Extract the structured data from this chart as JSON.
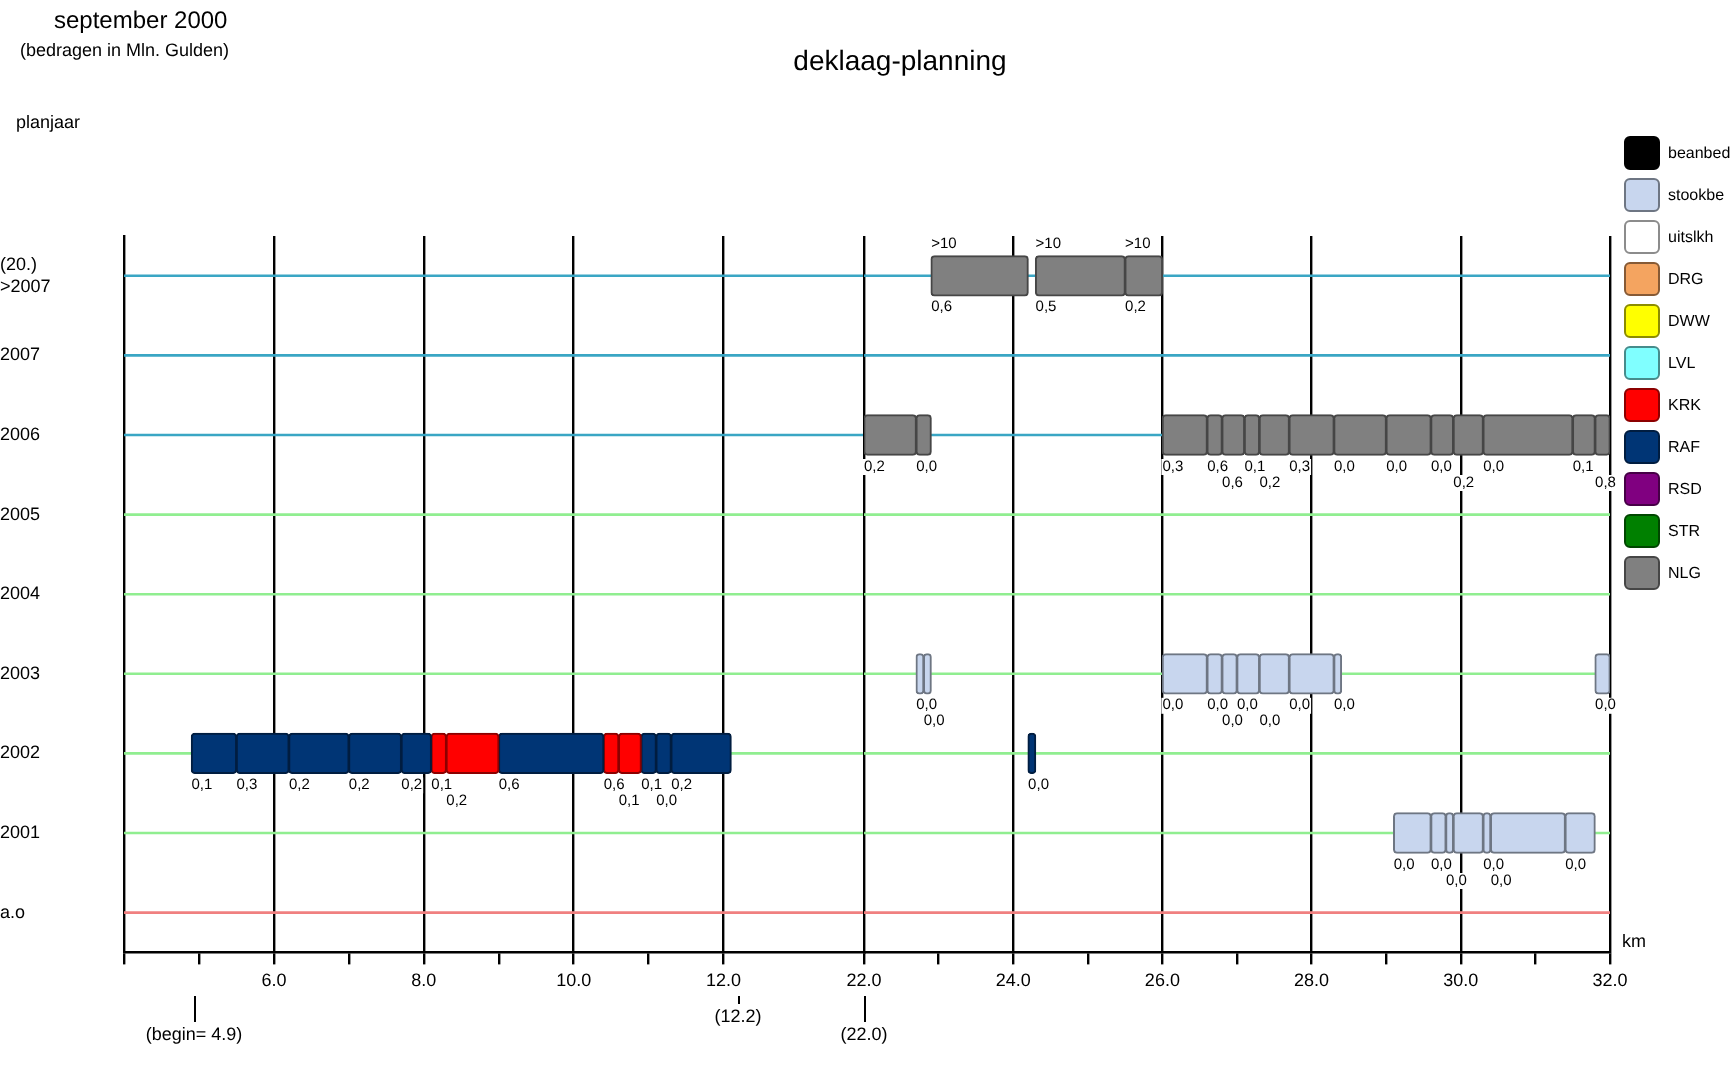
{
  "chart_data": [
    {
      "type": "bar",
      "orientation": "horizontal",
      "title": "deklaag-planning",
      "subtitle": "september 2000",
      "ylabel": "planjaar",
      "annotations": [
        "(bedragen in Mln. Gulden)",
        "(begin= 4.9)",
        "(12.2)",
        {
          "text": "0,1",
          "x": 4.9,
          "y": "2002"
        },
        {
          "text": "0,3",
          "x": 5.5,
          "y": "2002"
        },
        {
          "text": "0,2",
          "x": 6.2,
          "y": "2002"
        },
        {
          "text": "0,2",
          "x": 7.0,
          "y": "2002"
        },
        {
          "text": "0,2",
          "x": 7.7,
          "y": "2002"
        },
        {
          "text": "0,1",
          "x": 8.1,
          "y": "2002"
        },
        {
          "text": "0,2",
          "x": 8.3,
          "y": "2002"
        },
        {
          "text": "0,6",
          "x": 9.0,
          "y": "2002"
        },
        {
          "text": "0,6",
          "x": 10.4,
          "y": "2002"
        },
        {
          "text": "0,1",
          "x": 10.6,
          "y": "2002"
        },
        {
          "text": "0,1",
          "x": 10.9,
          "y": "2002"
        },
        {
          "text": "0,0",
          "x": 11.1,
          "y": "2002"
        },
        {
          "text": "0,2",
          "x": 11.3,
          "y": "2002"
        }
      ],
      "categories": [
        "(20.)\n>2007",
        "2007",
        "2006",
        "2005",
        "2004",
        "2003",
        "2002",
        "2001",
        "a.o"
      ],
      "xlim": [
        4,
        13.9
      ],
      "xticks": [
        {
          "value": 4,
          "label": null
        },
        {
          "value": 5,
          "label": null
        },
        {
          "value": 6,
          "label": "6.0"
        },
        {
          "value": 7,
          "label": null
        },
        {
          "value": 8,
          "label": "8.0"
        },
        {
          "value": 9,
          "label": null
        },
        {
          "value": 10,
          "label": "10.0"
        },
        {
          "value": 11,
          "label": null
        },
        {
          "value": 12,
          "label": "12.0"
        }
      ],
      "grid": "x",
      "series": [
        {
          "color": "#003575",
          "base": [
            null,
            null,
            null,
            null,
            null,
            null,
            4.9,
            null,
            null
          ],
          "values": [
            null,
            null,
            null,
            null,
            null,
            null,
            0.6,
            null,
            null
          ]
        },
        {
          "color": "#003575",
          "base": [
            null,
            null,
            null,
            null,
            null,
            null,
            5.5,
            null,
            null
          ],
          "values": [
            null,
            null,
            null,
            null,
            null,
            null,
            0.7,
            null,
            null
          ]
        },
        {
          "color": "#003575",
          "base": [
            null,
            null,
            null,
            null,
            null,
            null,
            6.2,
            null,
            null
          ],
          "values": [
            null,
            null,
            null,
            null,
            null,
            null,
            0.8,
            null,
            null
          ]
        },
        {
          "color": "#003575",
          "base": [
            null,
            null,
            null,
            null,
            null,
            null,
            7.0,
            null,
            null
          ],
          "values": [
            null,
            null,
            null,
            null,
            null,
            null,
            0.7,
            null,
            null
          ]
        },
        {
          "color": "#003575",
          "base": [
            null,
            null,
            null,
            null,
            null,
            null,
            7.7,
            null,
            null
          ],
          "values": [
            null,
            null,
            null,
            null,
            null,
            null,
            0.4,
            null,
            null
          ]
        },
        {
          "color": "#ff0000",
          "base": [
            null,
            null,
            null,
            null,
            null,
            null,
            8.1,
            null,
            null
          ],
          "values": [
            null,
            null,
            null,
            null,
            null,
            null,
            0.2,
            null,
            null
          ]
        },
        {
          "color": "#ff0000",
          "base": [
            null,
            null,
            null,
            null,
            null,
            null,
            8.3,
            null,
            null
          ],
          "values": [
            null,
            null,
            null,
            null,
            null,
            null,
            0.7,
            null,
            null
          ]
        },
        {
          "color": "#003575",
          "base": [
            null,
            null,
            null,
            null,
            null,
            null,
            9.0,
            null,
            null
          ],
          "values": [
            null,
            null,
            null,
            null,
            null,
            null,
            1.4,
            null,
            null
          ]
        },
        {
          "color": "#ff0000",
          "base": [
            null,
            null,
            null,
            null,
            null,
            null,
            10.4,
            null,
            null
          ],
          "values": [
            null,
            null,
            null,
            null,
            null,
            null,
            0.2,
            null,
            null
          ]
        },
        {
          "color": "#ff0000",
          "base": [
            null,
            null,
            null,
            null,
            null,
            null,
            10.6,
            null,
            null
          ],
          "values": [
            null,
            null,
            null,
            null,
            null,
            null,
            0.3,
            null,
            null
          ]
        },
        {
          "color": "#003575",
          "base": [
            null,
            null,
            null,
            null,
            null,
            null,
            10.9,
            null,
            null
          ],
          "values": [
            null,
            null,
            null,
            null,
            null,
            null,
            0.2,
            null,
            null
          ]
        },
        {
          "color": "#003575",
          "base": [
            null,
            null,
            null,
            null,
            null,
            null,
            11.1,
            null,
            null
          ],
          "values": [
            null,
            null,
            null,
            null,
            null,
            null,
            0.2,
            null,
            null
          ]
        },
        {
          "color": "#003575",
          "base": [
            null,
            null,
            null,
            null,
            null,
            null,
            11.3,
            null,
            null
          ],
          "values": [
            null,
            null,
            null,
            null,
            null,
            null,
            0.8,
            null,
            null
          ]
        }
      ],
      "ref_lines": [
        {
          "axis": "y",
          "value": "(20.)\n>2007",
          "color": "#3aa6c4"
        },
        {
          "axis": "y",
          "value": "2007",
          "color": "#3aa6c4"
        },
        {
          "axis": "y",
          "value": "2006",
          "color": "#3aa6c4"
        },
        {
          "axis": "y",
          "value": "2005",
          "color": "#90ee90"
        },
        {
          "axis": "y",
          "value": "2004",
          "color": "#90ee90"
        },
        {
          "axis": "y",
          "value": "2003",
          "color": "#90ee90"
        },
        {
          "axis": "y",
          "value": "2002",
          "color": "#90ee90"
        },
        {
          "axis": "y",
          "value": "2001",
          "color": "#90ee90"
        },
        {
          "axis": "y",
          "value": "a.o",
          "color": "#f08080"
        }
      ]
    },
    {
      "type": "bar",
      "orientation": "horizontal",
      "xlabel": "km",
      "annotations": [
        "(22.0)",
        {
          "text": "0,6",
          "x": 22.9,
          "y": "(20.)\n>2007"
        },
        {
          "text": ">10",
          "x": 22.9,
          "y": "(20.)\n>2007"
        },
        {
          "text": "0,5",
          "x": 24.3,
          "y": "(20.)\n>2007"
        },
        {
          "text": ">10",
          "x": 24.3,
          "y": "(20.)\n>2007"
        },
        {
          "text": "0,2",
          "x": 25.5,
          "y": "(20.)\n>2007"
        },
        {
          "text": ">10",
          "x": 25.5,
          "y": "(20.)\n>2007"
        },
        {
          "text": "0,2",
          "x": 22.0,
          "y": "2006"
        },
        {
          "text": "0,0",
          "x": 22.7,
          "y": "2006"
        },
        {
          "text": "0,3",
          "x": 26.0,
          "y": "2006"
        },
        {
          "text": "0,6",
          "x": 26.6,
          "y": "2006"
        },
        {
          "text": "0,6",
          "x": 26.8,
          "y": "2006"
        },
        {
          "text": "0,1",
          "x": 27.1,
          "y": "2006"
        },
        {
          "text": "0,2",
          "x": 27.3,
          "y": "2006"
        },
        {
          "text": "0,3",
          "x": 27.7,
          "y": "2006"
        },
        {
          "text": "0,0",
          "x": 28.3,
          "y": "2006"
        },
        {
          "text": "0,0",
          "x": 29.0,
          "y": "2006"
        },
        {
          "text": "0,0",
          "x": 29.6,
          "y": "2006"
        },
        {
          "text": "0,2",
          "x": 29.9,
          "y": "2006"
        },
        {
          "text": "0,0",
          "x": 30.3,
          "y": "2006"
        },
        {
          "text": "0,1",
          "x": 31.5,
          "y": "2006"
        },
        {
          "text": "0,8",
          "x": 31.8,
          "y": "2006"
        },
        {
          "text": "0,0",
          "x": 22.7,
          "y": "2003"
        },
        {
          "text": "0,0",
          "x": 22.8,
          "y": "2003"
        },
        {
          "text": "0,0",
          "x": 26.0,
          "y": "2003"
        },
        {
          "text": "0,0",
          "x": 26.6,
          "y": "2003"
        },
        {
          "text": "0,0",
          "x": 26.8,
          "y": "2003"
        },
        {
          "text": "0,0",
          "x": 27.0,
          "y": "2003"
        },
        {
          "text": "0,0",
          "x": 27.3,
          "y": "2003"
        },
        {
          "text": "0,0",
          "x": 27.7,
          "y": "2003"
        },
        {
          "text": "0,0",
          "x": 28.3,
          "y": "2003"
        },
        {
          "text": "0,0",
          "x": 31.8,
          "y": "2003"
        },
        {
          "text": "0,0",
          "x": 24.2,
          "y": "2002"
        },
        {
          "text": "0,0",
          "x": 29.1,
          "y": "2001"
        },
        {
          "text": "0,0",
          "x": 29.6,
          "y": "2001"
        },
        {
          "text": "0,0",
          "x": 29.8,
          "y": "2001"
        },
        {
          "text": "0,0",
          "x": 30.3,
          "y": "2001"
        },
        {
          "text": "0,0",
          "x": 30.4,
          "y": "2001"
        },
        {
          "text": "0,0",
          "x": 31.4,
          "y": "2001"
        }
      ],
      "categories": [
        "(20.)\n>2007",
        "2007",
        "2006",
        "2005",
        "2004",
        "2003",
        "2002",
        "2001",
        "a.o"
      ],
      "xlim": [
        22,
        32
      ],
      "xticks": [
        {
          "value": 22,
          "label": "22.0"
        },
        {
          "value": 23,
          "label": null
        },
        {
          "value": 24,
          "label": "24.0"
        },
        {
          "value": 25,
          "label": null
        },
        {
          "value": 26,
          "label": "26.0"
        },
        {
          "value": 27,
          "label": null
        },
        {
          "value": 28,
          "label": "28.0"
        },
        {
          "value": 29,
          "label": null
        },
        {
          "value": 30,
          "label": "30.0"
        },
        {
          "value": 31,
          "label": null
        },
        {
          "value": 32,
          "label": "32.0"
        }
      ],
      "grid": "x",
      "tick_labels": "x",
      "legend": "right",
      "series": [
        {
          "name": "beanbed",
          "color": "#000000",
          "base": [
            null,
            null,
            null,
            null,
            null,
            null,
            null,
            null,
            null
          ],
          "values": [
            null,
            null,
            null,
            null,
            null,
            null,
            null,
            null,
            null
          ]
        },
        {
          "name": "stookbe",
          "color": "#c8d6ee",
          "base": [
            null,
            null,
            null,
            null,
            null,
            22.7,
            null,
            29.1,
            null
          ],
          "values": [
            null,
            null,
            null,
            null,
            null,
            0.1,
            null,
            0.5,
            null
          ]
        },
        {
          "name": "uitslkh",
          "color": "#ffffff",
          "base": [
            null,
            null,
            null,
            null,
            null,
            null,
            null,
            null,
            null
          ],
          "values": [
            null,
            null,
            null,
            null,
            null,
            null,
            null,
            null,
            null
          ]
        },
        {
          "name": "DRG",
          "color": "#f4a460",
          "base": [
            null,
            null,
            null,
            null,
            null,
            null,
            null,
            null,
            null
          ],
          "values": [
            null,
            null,
            null,
            null,
            null,
            null,
            null,
            null,
            null
          ]
        },
        {
          "name": "DWW",
          "color": "#ffff00",
          "base": [
            null,
            null,
            null,
            null,
            null,
            null,
            null,
            null,
            null
          ],
          "values": [
            null,
            null,
            null,
            null,
            null,
            null,
            null,
            null,
            null
          ]
        },
        {
          "name": "LVL",
          "color": "#80ffff",
          "base": [
            null,
            null,
            null,
            null,
            null,
            null,
            null,
            null,
            null
          ],
          "values": [
            null,
            null,
            null,
            null,
            null,
            null,
            null,
            null,
            null
          ]
        },
        {
          "name": "KRK",
          "color": "#ff0000",
          "base": [
            null,
            null,
            null,
            null,
            null,
            null,
            null,
            null,
            null
          ],
          "values": [
            null,
            null,
            null,
            null,
            null,
            null,
            null,
            null,
            null
          ]
        },
        {
          "name": "RAF",
          "color": "#003575",
          "base": [
            null,
            null,
            null,
            null,
            null,
            null,
            24.2,
            null,
            null
          ],
          "values": [
            null,
            null,
            null,
            null,
            null,
            null,
            0.1,
            null,
            null
          ]
        },
        {
          "name": "RSD",
          "color": "#800080",
          "base": [
            null,
            null,
            null,
            null,
            null,
            null,
            null,
            null,
            null
          ],
          "values": [
            null,
            null,
            null,
            null,
            null,
            null,
            null,
            null,
            null
          ]
        },
        {
          "name": "STR",
          "color": "#008000",
          "base": [
            null,
            null,
            null,
            null,
            null,
            null,
            null,
            null,
            null
          ],
          "values": [
            null,
            null,
            null,
            null,
            null,
            null,
            null,
            null,
            null
          ]
        },
        {
          "name": "NLG",
          "color": "#808080",
          "base": [
            22.9,
            null,
            22.0,
            null,
            null,
            null,
            null,
            null,
            null
          ],
          "values": [
            1.3,
            null,
            0.7,
            null,
            null,
            null,
            null,
            null,
            null
          ]
        },
        {
          "color": "#808080",
          "base": [
            24.3,
            null,
            22.7,
            null,
            null,
            null,
            null,
            null,
            null
          ],
          "values": [
            1.2,
            null,
            0.2,
            null,
            null,
            null,
            null,
            null,
            null
          ]
        },
        {
          "color": "#808080",
          "base": [
            25.5,
            null,
            26.0,
            null,
            null,
            null,
            null,
            null,
            null
          ],
          "values": [
            0.5,
            null,
            0.6,
            null,
            null,
            null,
            null,
            null,
            null
          ]
        },
        {
          "color": "#808080",
          "base": [
            null,
            null,
            26.6,
            null,
            null,
            null,
            null,
            null,
            null
          ],
          "values": [
            null,
            null,
            0.2,
            null,
            null,
            null,
            null,
            null,
            null
          ]
        },
        {
          "color": "#808080",
          "base": [
            null,
            null,
            26.8,
            null,
            null,
            null,
            null,
            null,
            null
          ],
          "values": [
            null,
            null,
            0.3,
            null,
            null,
            null,
            null,
            null,
            null
          ]
        },
        {
          "color": "#808080",
          "base": [
            null,
            null,
            27.1,
            null,
            null,
            null,
            null,
            null,
            null
          ],
          "values": [
            null,
            null,
            0.2,
            null,
            null,
            null,
            null,
            null,
            null
          ]
        },
        {
          "color": "#808080",
          "base": [
            null,
            null,
            27.3,
            null,
            null,
            null,
            null,
            null,
            null
          ],
          "values": [
            null,
            null,
            0.4,
            null,
            null,
            null,
            null,
            null,
            null
          ]
        },
        {
          "color": "#808080",
          "base": [
            null,
            null,
            27.7,
            null,
            null,
            null,
            null,
            null,
            null
          ],
          "values": [
            null,
            null,
            0.6,
            null,
            null,
            null,
            null,
            null,
            null
          ]
        },
        {
          "color": "#808080",
          "base": [
            null,
            null,
            28.3,
            null,
            null,
            null,
            null,
            null,
            null
          ],
          "values": [
            null,
            null,
            0.7,
            null,
            null,
            null,
            null,
            null,
            null
          ]
        },
        {
          "color": "#808080",
          "base": [
            null,
            null,
            29.0,
            null,
            null,
            null,
            null,
            null,
            null
          ],
          "values": [
            null,
            null,
            0.6,
            null,
            null,
            null,
            null,
            null,
            null
          ]
        },
        {
          "color": "#808080",
          "base": [
            null,
            null,
            29.6,
            null,
            null,
            null,
            null,
            null,
            null
          ],
          "values": [
            null,
            null,
            0.3,
            null,
            null,
            null,
            null,
            null,
            null
          ]
        },
        {
          "color": "#808080",
          "base": [
            null,
            null,
            29.9,
            null,
            null,
            null,
            null,
            null,
            null
          ],
          "values": [
            null,
            null,
            0.4,
            null,
            null,
            null,
            null,
            null,
            null
          ]
        },
        {
          "color": "#808080",
          "base": [
            null,
            null,
            30.3,
            null,
            null,
            null,
            null,
            null,
            null
          ],
          "values": [
            null,
            null,
            1.2,
            null,
            null,
            null,
            null,
            null,
            null
          ]
        },
        {
          "color": "#808080",
          "base": [
            null,
            null,
            31.5,
            null,
            null,
            null,
            null,
            null,
            null
          ],
          "values": [
            null,
            null,
            0.3,
            null,
            null,
            null,
            null,
            null,
            null
          ]
        },
        {
          "color": "#808080",
          "base": [
            null,
            null,
            31.8,
            null,
            null,
            null,
            null,
            null,
            null
          ],
          "values": [
            null,
            null,
            0.2,
            null,
            null,
            null,
            null,
            null,
            null
          ]
        },
        {
          "color": "#c8d6ee",
          "base": [
            null,
            null,
            null,
            null,
            null,
            22.8,
            null,
            29.6,
            null
          ],
          "values": [
            null,
            null,
            null,
            null,
            null,
            0.1,
            null,
            0.2,
            null
          ]
        },
        {
          "color": "#c8d6ee",
          "base": [
            null,
            null,
            null,
            null,
            null,
            26.0,
            null,
            29.8,
            null
          ],
          "values": [
            null,
            null,
            null,
            null,
            null,
            0.6,
            null,
            0.1,
            null
          ]
        },
        {
          "color": "#c8d6ee",
          "base": [
            null,
            null,
            null,
            null,
            null,
            26.6,
            null,
            29.9,
            null
          ],
          "values": [
            null,
            null,
            null,
            null,
            null,
            0.2,
            null,
            0.4,
            null
          ]
        },
        {
          "color": "#c8d6ee",
          "base": [
            null,
            null,
            null,
            null,
            null,
            26.8,
            null,
            30.3,
            null
          ],
          "values": [
            null,
            null,
            null,
            null,
            null,
            0.2,
            null,
            0.1,
            null
          ]
        },
        {
          "color": "#c8d6ee",
          "base": [
            null,
            null,
            null,
            null,
            null,
            27.0,
            null,
            30.4,
            null
          ],
          "values": [
            null,
            null,
            null,
            null,
            null,
            0.3,
            null,
            1.0,
            null
          ]
        },
        {
          "color": "#c8d6ee",
          "base": [
            null,
            null,
            null,
            null,
            null,
            27.3,
            null,
            31.4,
            null
          ],
          "values": [
            null,
            null,
            null,
            null,
            null,
            0.4,
            null,
            0.4,
            null
          ]
        },
        {
          "color": "#c8d6ee",
          "base": [
            null,
            null,
            null,
            null,
            null,
            27.7,
            null,
            null,
            null
          ],
          "values": [
            null,
            null,
            null,
            null,
            null,
            0.6,
            null,
            null,
            null
          ]
        },
        {
          "color": "#c8d6ee",
          "base": [
            null,
            null,
            null,
            null,
            null,
            28.3,
            null,
            null,
            null
          ],
          "values": [
            null,
            null,
            null,
            null,
            null,
            0.1,
            null,
            null,
            null
          ]
        },
        {
          "color": "#c8d6ee",
          "base": [
            null,
            null,
            null,
            null,
            null,
            31.8,
            null,
            null,
            null
          ],
          "values": [
            null,
            null,
            null,
            null,
            null,
            0.2,
            null,
            null,
            null
          ]
        }
      ],
      "ref_lines": [
        {
          "axis": "y",
          "value": "(20.)\n>2007",
          "color": "#3aa6c4"
        },
        {
          "axis": "y",
          "value": "2007",
          "color": "#3aa6c4"
        },
        {
          "axis": "y",
          "value": "2006",
          "color": "#3aa6c4"
        },
        {
          "axis": "y",
          "value": "2005",
          "color": "#90ee90"
        },
        {
          "axis": "y",
          "value": "2004",
          "color": "#90ee90"
        },
        {
          "axis": "y",
          "value": "2003",
          "color": "#90ee90"
        },
        {
          "axis": "y",
          "value": "2002",
          "color": "#90ee90"
        },
        {
          "axis": "y",
          "value": "2001",
          "color": "#90ee90"
        },
        {
          "axis": "y",
          "value": "a.o",
          "color": "#f08080"
        }
      ]
    }
  ]
}
